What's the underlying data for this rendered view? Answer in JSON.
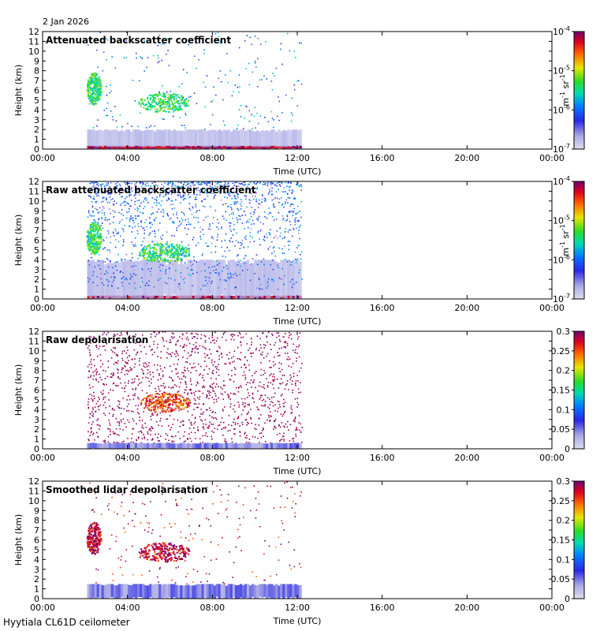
{
  "header": {
    "date": "2 Jan 2026"
  },
  "footer": {
    "site": "Hyytiala CL61D ceilometer"
  },
  "chart_data": [
    {
      "type": "heatmap",
      "title": "Attenuated backscatter coefficient",
      "xlabel": "Time (UTC)",
      "ylabel": "Height (km)",
      "x_ticks": [
        "00:00",
        "04:00",
        "08:00",
        "12:00",
        "16:00",
        "20:00",
        "00:00"
      ],
      "xlim_hours": [
        0,
        24
      ],
      "ylim": [
        0,
        12
      ],
      "y_ticks": [
        0,
        1,
        2,
        3,
        4,
        5,
        6,
        7,
        8,
        9,
        10,
        11,
        12
      ],
      "data_extent_hours": [
        2.1,
        12.2
      ],
      "colorbar": {
        "scale": "log",
        "ticks": [
          "10",
          "10",
          "10",
          "10"
        ],
        "tick_exponents": [
          "-7",
          "-6",
          "-5",
          "-4"
        ],
        "label": "m sr",
        "label_exponent": "-1"
      },
      "features": [
        {
          "kind": "layer",
          "start": 2.1,
          "end": 12.2,
          "bottom": 0.05,
          "top": 0.35,
          "level": 0.95
        },
        {
          "kind": "haze",
          "start": 2.1,
          "end": 12.2,
          "bottom": 0.2,
          "top": 2.0,
          "level": 0.1
        },
        {
          "kind": "cloud",
          "start": 2.05,
          "end": 2.75,
          "bottom": 4.6,
          "top": 7.9,
          "level": 0.55
        },
        {
          "kind": "cloud",
          "start": 4.5,
          "end": 6.9,
          "bottom": 3.8,
          "top": 5.8,
          "level": 0.55
        },
        {
          "kind": "sparse",
          "start": 2.1,
          "end": 12.2,
          "bottom": 2.0,
          "top": 12.0,
          "level": 0.35
        }
      ]
    },
    {
      "type": "heatmap",
      "title": "Raw attenuated backscatter coefficient",
      "xlabel": "Time (UTC)",
      "ylabel": "Height (km)",
      "x_ticks": [
        "00:00",
        "04:00",
        "08:00",
        "12:00",
        "16:00",
        "20:00",
        "00:00"
      ],
      "xlim_hours": [
        0,
        24
      ],
      "ylim": [
        0,
        12
      ],
      "y_ticks": [
        0,
        1,
        2,
        3,
        4,
        5,
        6,
        7,
        8,
        9,
        10,
        11,
        12
      ],
      "data_extent_hours": [
        2.1,
        12.2
      ],
      "colorbar": {
        "scale": "log",
        "ticks": [
          "10",
          "10",
          "10",
          "10"
        ],
        "tick_exponents": [
          "-7",
          "-6",
          "-5",
          "-4"
        ],
        "label": "m sr",
        "label_exponent": "-1"
      },
      "features": [
        {
          "kind": "layer",
          "start": 2.1,
          "end": 12.2,
          "bottom": 0.05,
          "top": 0.35,
          "level": 0.95
        },
        {
          "kind": "haze",
          "start": 2.1,
          "end": 12.2,
          "bottom": 0.0,
          "top": 4.0,
          "level": 0.1
        },
        {
          "kind": "noise",
          "start": 2.1,
          "end": 12.2,
          "bottom": 1.0,
          "top": 12.0,
          "level": 0.3
        },
        {
          "kind": "cloud",
          "start": 2.05,
          "end": 2.75,
          "bottom": 4.6,
          "top": 7.9,
          "level": 0.55
        },
        {
          "kind": "cloud",
          "start": 4.5,
          "end": 6.9,
          "bottom": 3.8,
          "top": 5.8,
          "level": 0.55
        }
      ]
    },
    {
      "type": "heatmap",
      "title": "Raw depolarisation",
      "xlabel": "Time (UTC)",
      "ylabel": "Height (km)",
      "x_ticks": [
        "00:00",
        "04:00",
        "08:00",
        "12:00",
        "16:00",
        "20:00",
        "00:00"
      ],
      "xlim_hours": [
        0,
        24
      ],
      "ylim": [
        0,
        12
      ],
      "y_ticks": [
        0,
        1,
        2,
        3,
        4,
        5,
        6,
        7,
        8,
        9,
        10,
        11,
        12
      ],
      "data_extent_hours": [
        2.1,
        12.2
      ],
      "colorbar": {
        "scale": "linear",
        "range": [
          0,
          0.3
        ],
        "ticks": [
          "0",
          "0.05",
          "0.1",
          "0.15",
          "0.2",
          "0.25",
          "0.3"
        ]
      },
      "features": [
        {
          "kind": "noise",
          "start": 2.1,
          "end": 12.2,
          "bottom": 0.6,
          "top": 12.0,
          "level": 0.98
        },
        {
          "kind": "layer",
          "start": 2.1,
          "end": 12.2,
          "bottom": 0.0,
          "top": 0.6,
          "level": 0.15
        },
        {
          "kind": "cloud",
          "start": 4.5,
          "end": 6.9,
          "bottom": 3.8,
          "top": 5.8,
          "level": 0.85
        }
      ]
    },
    {
      "type": "heatmap",
      "title": "Smoothed lidar depolarisation",
      "xlabel": "Time (UTC)",
      "ylabel": "Height (km)",
      "x_ticks": [
        "00:00",
        "04:00",
        "08:00",
        "12:00",
        "16:00",
        "20:00",
        "00:00"
      ],
      "xlim_hours": [
        0,
        24
      ],
      "ylim": [
        0,
        12
      ],
      "y_ticks": [
        0,
        1,
        2,
        3,
        4,
        5,
        6,
        7,
        8,
        9,
        10,
        11,
        12
      ],
      "data_extent_hours": [
        2.1,
        12.2
      ],
      "colorbar": {
        "scale": "linear",
        "range": [
          0,
          0.3
        ],
        "ticks": [
          "0",
          "0.05",
          "0.1",
          "0.15",
          "0.2",
          "0.25",
          "0.3"
        ]
      },
      "features": [
        {
          "kind": "layer",
          "start": 2.1,
          "end": 12.2,
          "bottom": 0.0,
          "top": 1.5,
          "level": 0.15
        },
        {
          "kind": "cloud",
          "start": 2.05,
          "end": 2.75,
          "bottom": 4.6,
          "top": 7.9,
          "level": 0.95
        },
        {
          "kind": "cloud",
          "start": 4.5,
          "end": 6.9,
          "bottom": 3.8,
          "top": 5.8,
          "level": 0.95
        },
        {
          "kind": "sparse",
          "start": 2.1,
          "end": 12.2,
          "bottom": 1.5,
          "top": 12.0,
          "level": 0.95
        }
      ]
    }
  ]
}
